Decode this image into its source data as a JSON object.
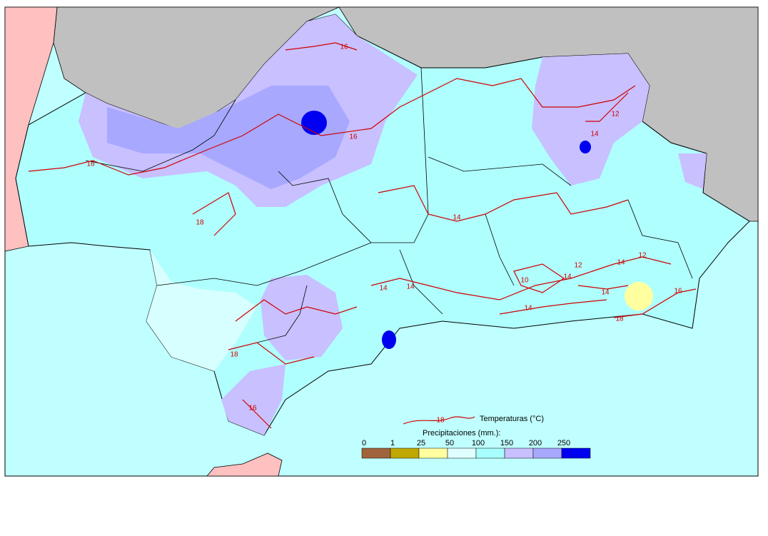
{
  "map": {
    "contour_labels": [
      "16",
      "16",
      "16",
      "18",
      "12",
      "14",
      "14",
      "14",
      "14",
      "12",
      "12",
      "14",
      "10",
      "14",
      "14",
      "16",
      "18",
      "14",
      "18",
      "16"
    ],
    "legend": {
      "temperature_sample_label": "18",
      "temperature_title": "Temperaturas (°C)",
      "precipitation_title": "Precipitaciones (mm.):",
      "scale_ticks": [
        0,
        1,
        25,
        50,
        100,
        150,
        200,
        250
      ],
      "scale_colors": [
        "#a0643c",
        "#c0a800",
        "#ffffa0",
        "#e0ffff",
        "#a8ffff",
        "#c8c0ff",
        "#a8a8ff",
        "#0000f0"
      ]
    }
  }
}
